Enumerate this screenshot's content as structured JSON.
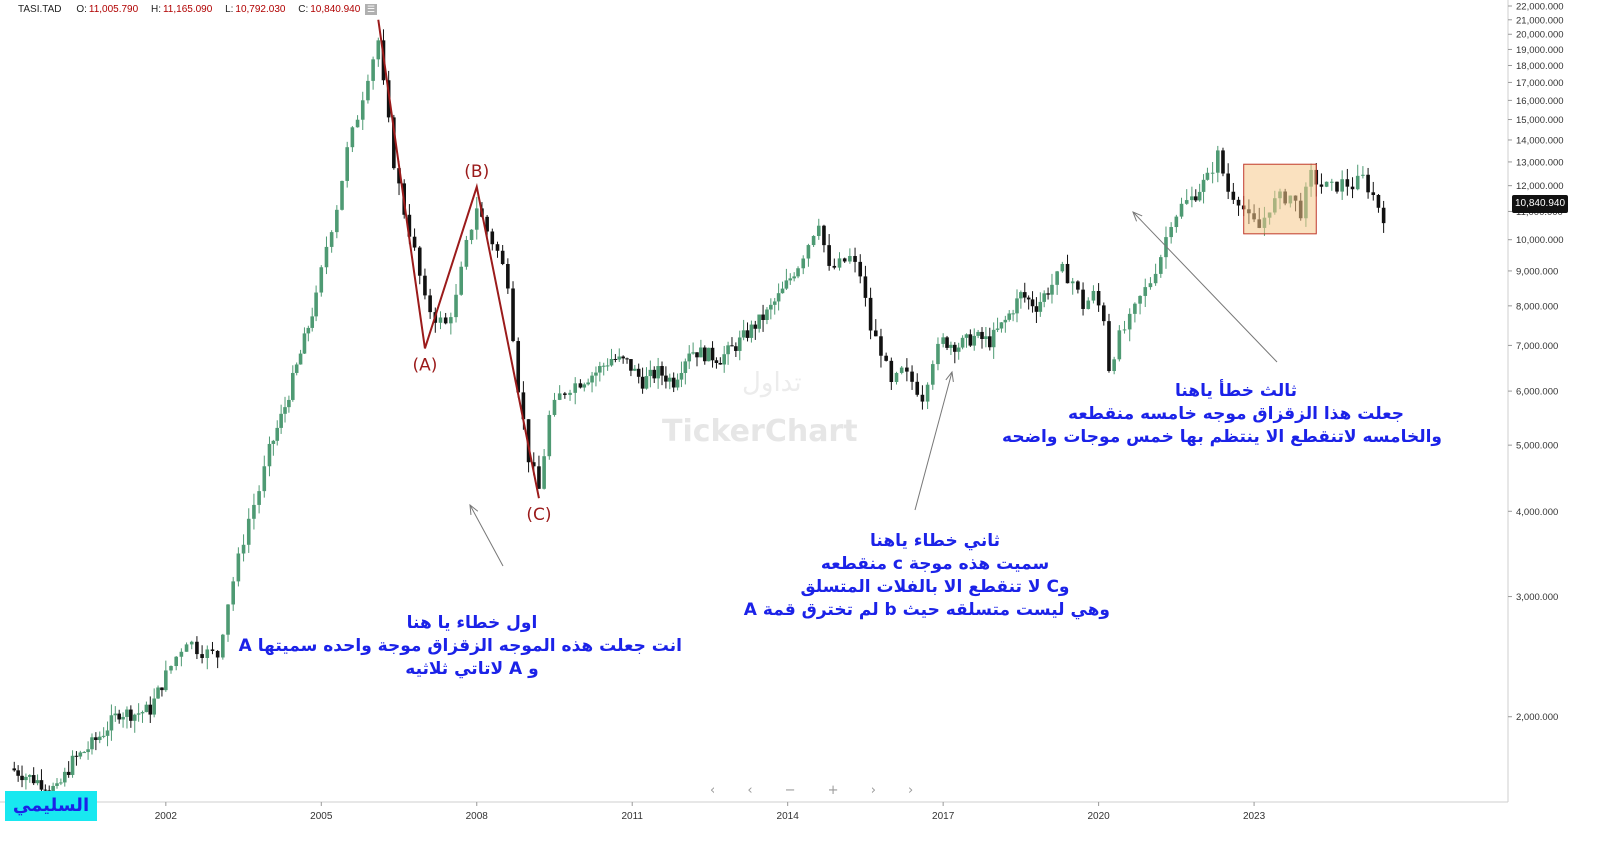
{
  "header": {
    "symbol": "TASI.TAD",
    "open_label": "O:",
    "open": "11,005.790",
    "high_label": "H:",
    "high": "11,165.090",
    "low_label": "L:",
    "low": "10,792.030",
    "close_label": "C:",
    "close": "10,840.940",
    "menu_glyph": "☰"
  },
  "watermark": {
    "brand": "TickerChart",
    "arabic": "تداول"
  },
  "badge": {
    "text": "السليمي"
  },
  "navigator": {
    "glyphs": "‹ ‹ − + › ›"
  },
  "colors": {
    "up": "#4e9a73",
    "down": "#111111",
    "wave": "#9b1b1b",
    "annotation": "#1b22e8",
    "box_fill": "#f5c98b",
    "box_border": "#c0392b"
  },
  "annotations": {
    "first": {
      "lines": [
        "اول خطاء يا هنا",
        "انت جعلت هذه الموجه الزقزاق موجة واحده سميتها A",
        "و A  لاتاتي ثلاثيه"
      ]
    },
    "second": {
      "lines": [
        "ثاني خطاء ياهنا",
        "سميت هذه موجة c منقطعه",
        "وC لا تنقطع الا بالفلات المتسلق",
        "وهي ليست متسلقه حيث b لم تخترق قمة A"
      ]
    },
    "third": {
      "lines": [
        "ثالث خطأ ياهنا",
        "جعلت هذا الزقزاق موجه خامسه منقطعه",
        "والخامسه لاتنقطع الا ينتظم بها خمس موجات واضحه"
      ]
    }
  },
  "chart_data": {
    "type": "candlestick",
    "scale": "log",
    "ylim": [
      1500,
      22000
    ],
    "y_ticks": [
      "2,000.000",
      "3,000.000",
      "4,000.000",
      "5,000.000",
      "6,000.000",
      "7,000.000",
      "8,000.000",
      "9,000.000",
      "10,000.000",
      "11,000.000",
      "12,000.000",
      "13,000.000",
      "14,000.000",
      "15,000.000",
      "16,000.000",
      "17,000.000",
      "18,000.000",
      "19,000.000",
      "20,000.000",
      "21,000.000",
      "22,000.000"
    ],
    "y_tick_values": [
      2000,
      3000,
      4000,
      5000,
      6000,
      7000,
      8000,
      9000,
      10000,
      11000,
      12000,
      13000,
      14000,
      15000,
      16000,
      17000,
      18000,
      19000,
      20000,
      21000,
      22000
    ],
    "x_ticks": [
      "2002",
      "2005",
      "2008",
      "2011",
      "2014",
      "2017",
      "2020",
      "2023"
    ],
    "x_tick_years": [
      2002,
      2005,
      2008,
      2011,
      2014,
      2017,
      2020,
      2023
    ],
    "xlim": [
      1998.8,
      2027.9
    ],
    "last_price": "10,840.940",
    "series": [
      {
        "values": [
          [
            1999.0,
            1680
          ],
          [
            1999.3,
            1640
          ],
          [
            1999.6,
            1600
          ],
          [
            1999.9,
            1560
          ],
          [
            2000.2,
            1720
          ],
          [
            2000.5,
            1800
          ],
          [
            2000.8,
            1900
          ],
          [
            2001.1,
            2030
          ],
          [
            2001.4,
            2020
          ],
          [
            2001.7,
            2050
          ],
          [
            2002.0,
            2300
          ],
          [
            2002.2,
            2450
          ],
          [
            2002.4,
            2600
          ],
          [
            2002.6,
            2520
          ],
          [
            2002.8,
            2480
          ],
          [
            2003.0,
            2460
          ],
          [
            2003.2,
            2950
          ],
          [
            2003.4,
            3400
          ],
          [
            2003.6,
            3900
          ],
          [
            2003.8,
            4300
          ],
          [
            2004.0,
            4900
          ],
          [
            2004.3,
            5700
          ],
          [
            2004.6,
            6800
          ],
          [
            2004.9,
            8200
          ],
          [
            2005.1,
            9800
          ],
          [
            2005.3,
            11200
          ],
          [
            2005.5,
            13500
          ],
          [
            2005.7,
            15200
          ],
          [
            2005.9,
            17500
          ],
          [
            2006.1,
            19600
          ],
          [
            2006.2,
            16800
          ],
          [
            2006.4,
            13000
          ],
          [
            2006.6,
            11000
          ],
          [
            2006.8,
            9600
          ],
          [
            2007.0,
            8100
          ],
          [
            2007.2,
            7700
          ],
          [
            2007.4,
            7500
          ],
          [
            2007.6,
            8200
          ],
          [
            2007.8,
            9800
          ],
          [
            2008.0,
            11200
          ],
          [
            2008.2,
            10300
          ],
          [
            2008.4,
            9600
          ],
          [
            2008.6,
            8700
          ],
          [
            2008.8,
            6100
          ],
          [
            2009.0,
            4800
          ],
          [
            2009.2,
            4300
          ],
          [
            2009.4,
            5500
          ],
          [
            2009.6,
            5900
          ],
          [
            2009.8,
            6100
          ],
          [
            2010.0,
            6200
          ],
          [
            2010.3,
            6400
          ],
          [
            2010.6,
            6700
          ],
          [
            2010.9,
            6600
          ],
          [
            2011.2,
            6200
          ],
          [
            2011.5,
            6400
          ],
          [
            2011.8,
            6200
          ],
          [
            2012.1,
            6900
          ],
          [
            2012.4,
            6800
          ],
          [
            2012.7,
            6700
          ],
          [
            2013.0,
            7000
          ],
          [
            2013.3,
            7400
          ],
          [
            2013.6,
            7800
          ],
          [
            2013.9,
            8400
          ],
          [
            2014.2,
            9200
          ],
          [
            2014.4,
            9900
          ],
          [
            2014.6,
            10700
          ],
          [
            2014.8,
            9000
          ],
          [
            2015.0,
            9200
          ],
          [
            2015.2,
            9400
          ],
          [
            2015.4,
            8900
          ],
          [
            2015.6,
            7400
          ],
          [
            2015.8,
            6900
          ],
          [
            2016.0,
            6100
          ],
          [
            2016.2,
            6400
          ],
          [
            2016.4,
            6200
          ],
          [
            2016.6,
            5900
          ],
          [
            2016.8,
            6700
          ],
          [
            2017.0,
            7100
          ],
          [
            2017.3,
            7000
          ],
          [
            2017.6,
            7200
          ],
          [
            2017.9,
            7100
          ],
          [
            2018.2,
            7600
          ],
          [
            2018.5,
            8300
          ],
          [
            2018.8,
            8000
          ],
          [
            2019.1,
            8600
          ],
          [
            2019.3,
            9000
          ],
          [
            2019.5,
            8700
          ],
          [
            2019.7,
            8000
          ],
          [
            2019.9,
            8300
          ],
          [
            2020.1,
            7700
          ],
          [
            2020.2,
            6500
          ],
          [
            2020.4,
            7200
          ],
          [
            2020.6,
            7600
          ],
          [
            2020.8,
            8200
          ],
          [
            2021.0,
            8700
          ],
          [
            2021.2,
            9500
          ],
          [
            2021.4,
            10700
          ],
          [
            2021.6,
            11200
          ],
          [
            2021.8,
            11500
          ],
          [
            2022.1,
            12300
          ],
          [
            2022.3,
            13300
          ],
          [
            2022.5,
            11800
          ],
          [
            2022.7,
            11500
          ],
          [
            2022.9,
            10700
          ],
          [
            2023.1,
            10400
          ],
          [
            2023.3,
            11200
          ],
          [
            2023.5,
            11500
          ],
          [
            2023.7,
            11600
          ],
          [
            2023.9,
            11000
          ],
          [
            2024.1,
            12400
          ],
          [
            2024.3,
            12000
          ],
          [
            2024.5,
            11900
          ],
          [
            2024.7,
            12100
          ],
          [
            2024.9,
            12000
          ],
          [
            2025.1,
            12300
          ],
          [
            2025.3,
            11600
          ],
          [
            2025.5,
            10840
          ]
        ]
      }
    ],
    "wave_labels": [
      {
        "label": "(A)",
        "x": 2007.0,
        "y": 6930
      },
      {
        "label": "(B)",
        "x": 2008.0,
        "y": 11950
      },
      {
        "label": "(C)",
        "x": 2009.2,
        "y": 4180
      }
    ],
    "wave_path": [
      [
        2006.1,
        21000
      ],
      [
        2007.0,
        6930
      ],
      [
        2008.0,
        11950
      ],
      [
        2009.2,
        4180
      ]
    ],
    "highlight_box": {
      "x0": 2022.8,
      "x1": 2024.2,
      "y0": 10200,
      "y1": 12900
    }
  }
}
